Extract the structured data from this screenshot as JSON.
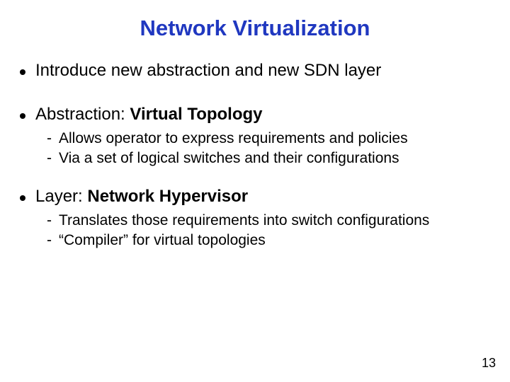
{
  "title": {
    "text": "Network Virtualization",
    "color": "#2038c0",
    "fontsize": 31
  },
  "bullets": [
    {
      "prefix": "Introduce new abstraction and new SDN layer",
      "bold": "",
      "subs": []
    },
    {
      "prefix": "Abstraction: ",
      "bold": "Virtual Topology",
      "subs": [
        "Allows operator to express requirements and policies",
        "Via a set of logical switches and their configurations"
      ]
    },
    {
      "prefix": "Layer: ",
      "bold": "Network Hypervisor",
      "subs": [
        "Translates those requirements into switch configurations",
        "“Compiler” for virtual topologies"
      ]
    }
  ],
  "body_fontsize_main": 24,
  "body_fontsize_sub": 21,
  "page_number": "13",
  "page_number_fontsize": 18
}
